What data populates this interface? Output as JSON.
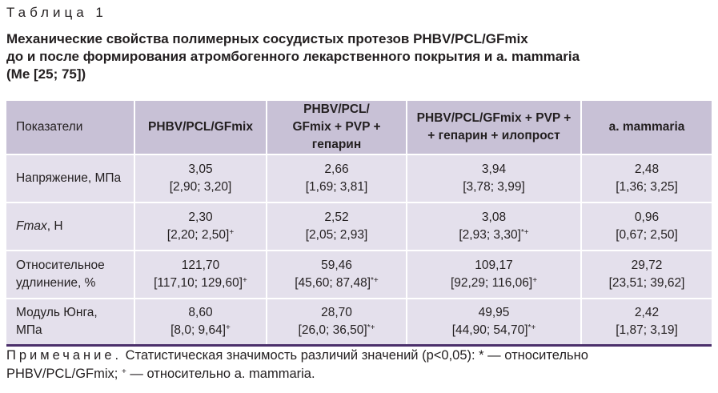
{
  "table_number": "Таблица 1",
  "caption_lines": [
    "Механические свойства полимерных сосудистых протезов PHBV/PCL/GFmix",
    "до и после формирования атромбогенного лекарственного покрытия и a. mammaria",
    "(Ме [25; 75])"
  ],
  "table": {
    "headers": [
      {
        "lines": [
          "Показатели"
        ]
      },
      {
        "lines": [
          "PHBV/PCL/GFmix"
        ]
      },
      {
        "lines": [
          "PHBV/PCL/",
          "GFmix + PVP + гепарин"
        ]
      },
      {
        "lines": [
          "PHBV/PCL/GFmix + PVP +",
          "+ гепарин + илопрост"
        ]
      },
      {
        "lines": [
          "a. mammaria"
        ]
      }
    ],
    "rows": [
      {
        "label": [
          "Напряжение, МПа"
        ],
        "label_italic_prefix": "",
        "cells": [
          {
            "median": "3,05",
            "range": "[2,90; 3,20]",
            "mark": ""
          },
          {
            "median": "2,66",
            "range": "[1,69; 3,81]",
            "mark": ""
          },
          {
            "median": "3,94",
            "range": "[3,78; 3,99]",
            "mark": ""
          },
          {
            "median": "2,48",
            "range": "[1,36; 3,25]",
            "mark": ""
          }
        ]
      },
      {
        "label": [
          ", Н"
        ],
        "label_italic_prefix": "Fmax",
        "cells": [
          {
            "median": "2,30",
            "range": "[2,20; 2,50]",
            "mark": "+"
          },
          {
            "median": "2,52",
            "range": "[2,05; 2,93]",
            "mark": ""
          },
          {
            "median": "3,08",
            "range": "[2,93; 3,30]",
            "mark": "*+"
          },
          {
            "median": "0,96",
            "range": "[0,67; 2,50]",
            "mark": ""
          }
        ]
      },
      {
        "label": [
          "Относительное",
          "удлинение, %"
        ],
        "label_italic_prefix": "",
        "cells": [
          {
            "median": "121,70",
            "range": "[117,10; 129,60]",
            "mark": "+"
          },
          {
            "median": "59,46",
            "range": "[45,60; 87,48]",
            "mark": "*+"
          },
          {
            "median": "109,17",
            "range": "[92,29; 116,06]",
            "mark": "+"
          },
          {
            "median": "29,72",
            "range": "[23,51; 39,62]",
            "mark": ""
          }
        ]
      },
      {
        "label": [
          "Модуль Юнга,",
          "МПа"
        ],
        "label_italic_prefix": "",
        "cells": [
          {
            "median": "8,60",
            "range": "[8,0; 9,64]",
            "mark": "+"
          },
          {
            "median": "28,70",
            "range": "[26,0; 36,50]",
            "mark": "*+"
          },
          {
            "median": "49,95",
            "range": "[44,90; 54,70]",
            "mark": "*+"
          },
          {
            "median": "2,42",
            "range": "[1,87; 3,19]",
            "mark": ""
          }
        ]
      }
    ]
  },
  "note": {
    "prefix": "Примечание.",
    "line1": " Статистическая значимость различий значений (p<0,05): * — относительно",
    "line2_a": "PHBV/PCL/GFmix; ",
    "line2_mark": "+",
    "line2_b": " — относительно a. mammaria."
  },
  "colors": {
    "header_bg": "#c8c1d6",
    "row_bg": "#e4e0ec",
    "bottom_rule": "#4b2f6b",
    "text": "#231f20"
  }
}
